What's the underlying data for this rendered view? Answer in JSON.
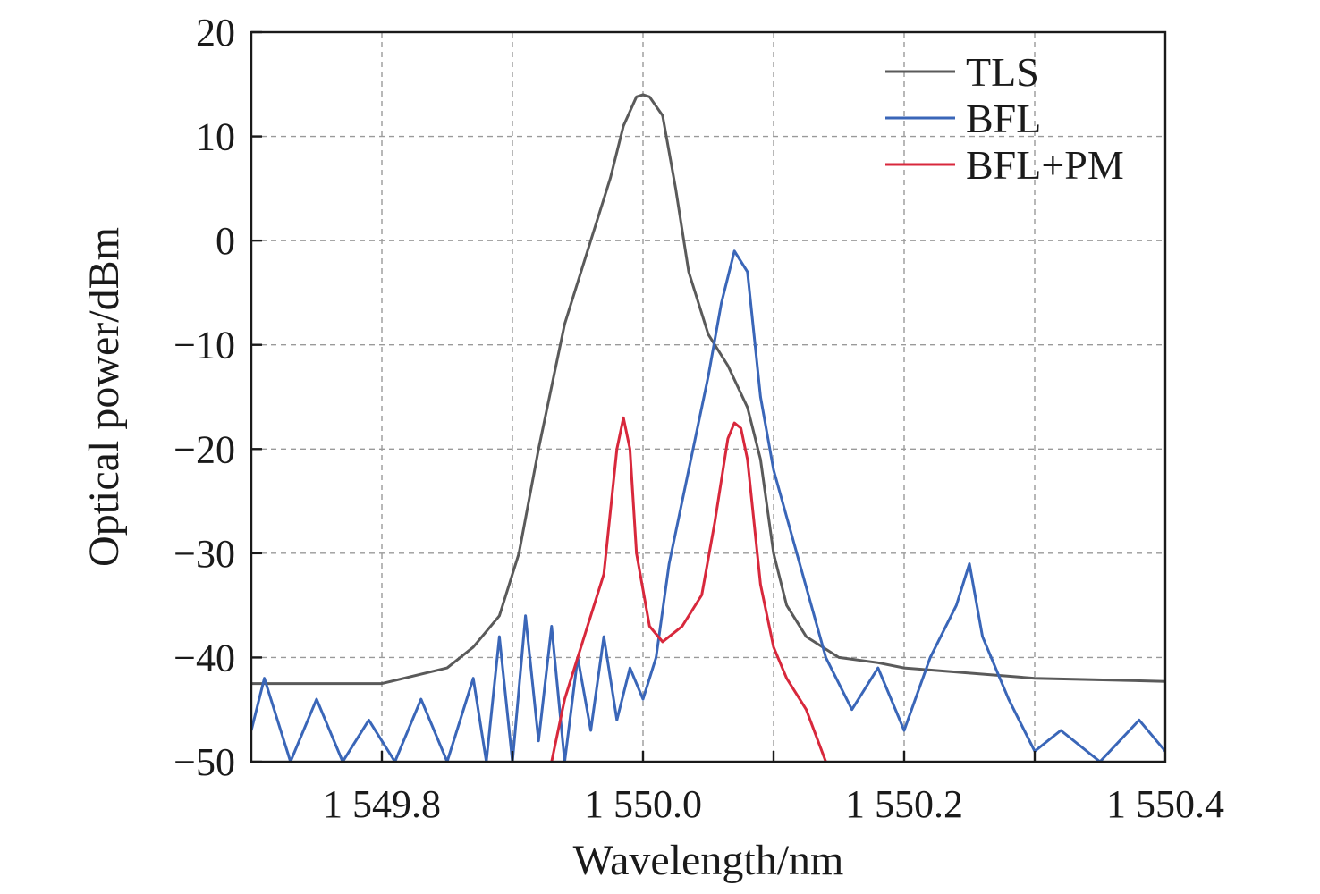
{
  "chart_data": {
    "type": "line",
    "xlabel": "Wavelength/nm",
    "ylabel": "Optical power/dBm",
    "xlim": [
      1549.7,
      1550.4
    ],
    "ylim": [
      -50,
      20
    ],
    "xticks": [
      1549.8,
      1550.0,
      1550.2,
      1550.4
    ],
    "xtick_labels": [
      "1 549.8",
      "1 550.0",
      "1 550.2",
      "1 550.4"
    ],
    "yticks": [
      -50,
      -40,
      -30,
      -20,
      -10,
      0,
      10,
      20
    ],
    "ytick_labels": [
      "−50",
      "−40",
      "−30",
      "−20",
      "−10",
      "0",
      "10",
      "20"
    ],
    "grid": true,
    "legend_position": "top-right",
    "series": [
      {
        "name": "TLS",
        "color": "#5a5a5a",
        "x": [
          1549.7,
          1549.8,
          1549.85,
          1549.87,
          1549.89,
          1549.905,
          1549.92,
          1549.94,
          1549.96,
          1549.975,
          1549.985,
          1549.995,
          1550.0,
          1550.005,
          1550.015,
          1550.025,
          1550.035,
          1550.05,
          1550.065,
          1550.08,
          1550.09,
          1550.1,
          1550.11,
          1550.125,
          1550.15,
          1550.18,
          1550.2,
          1550.25,
          1550.3,
          1550.4
        ],
        "y": [
          -42.5,
          -42.5,
          -41,
          -39,
          -36,
          -30,
          -20,
          -8,
          0,
          6,
          11,
          13.8,
          14,
          13.8,
          12,
          5,
          -3,
          -9,
          -12,
          -16,
          -21,
          -30,
          -35,
          -38,
          -40,
          -40.5,
          -41,
          -41.5,
          -42,
          -42.3
        ]
      },
      {
        "name": "BFL",
        "color": "#3a66b8",
        "x": [
          1549.7,
          1549.71,
          1549.73,
          1549.75,
          1549.77,
          1549.79,
          1549.81,
          1549.83,
          1549.85,
          1549.87,
          1549.88,
          1549.89,
          1549.9,
          1549.91,
          1549.92,
          1549.93,
          1549.94,
          1549.95,
          1549.96,
          1549.97,
          1549.98,
          1549.99,
          1550.0,
          1550.01,
          1550.02,
          1550.03,
          1550.04,
          1550.05,
          1550.06,
          1550.07,
          1550.08,
          1550.09,
          1550.1,
          1550.12,
          1550.14,
          1550.16,
          1550.18,
          1550.2,
          1550.22,
          1550.24,
          1550.25,
          1550.26,
          1550.28,
          1550.3,
          1550.32,
          1550.35,
          1550.38,
          1550.4
        ],
        "y": [
          -47,
          -42,
          -50,
          -44,
          -50,
          -46,
          -50,
          -44,
          -50,
          -42,
          -50,
          -38,
          -50,
          -36,
          -48,
          -37,
          -50,
          -40,
          -47,
          -38,
          -46,
          -41,
          -44,
          -40,
          -31,
          -25,
          -19,
          -13,
          -6,
          -1,
          -3,
          -15,
          -22,
          -31,
          -40,
          -45,
          -41,
          -47,
          -40,
          -35,
          -31,
          -38,
          -44,
          -49,
          -47,
          -50,
          -46,
          -49
        ]
      },
      {
        "name": "BFL+PM",
        "color": "#d8283c",
        "x": [
          1549.93,
          1549.94,
          1549.955,
          1549.97,
          1549.98,
          1549.985,
          1549.99,
          1549.995,
          1550.005,
          1550.015,
          1550.03,
          1550.045,
          1550.055,
          1550.065,
          1550.07,
          1550.075,
          1550.08,
          1550.09,
          1550.1,
          1550.11,
          1550.125,
          1550.14
        ],
        "y": [
          -50,
          -44,
          -38,
          -32,
          -20,
          -17,
          -20,
          -30,
          -37,
          -38.5,
          -37,
          -34,
          -27,
          -19,
          -17.5,
          -18,
          -21,
          -33,
          -39,
          -42,
          -45,
          -50
        ]
      }
    ]
  }
}
